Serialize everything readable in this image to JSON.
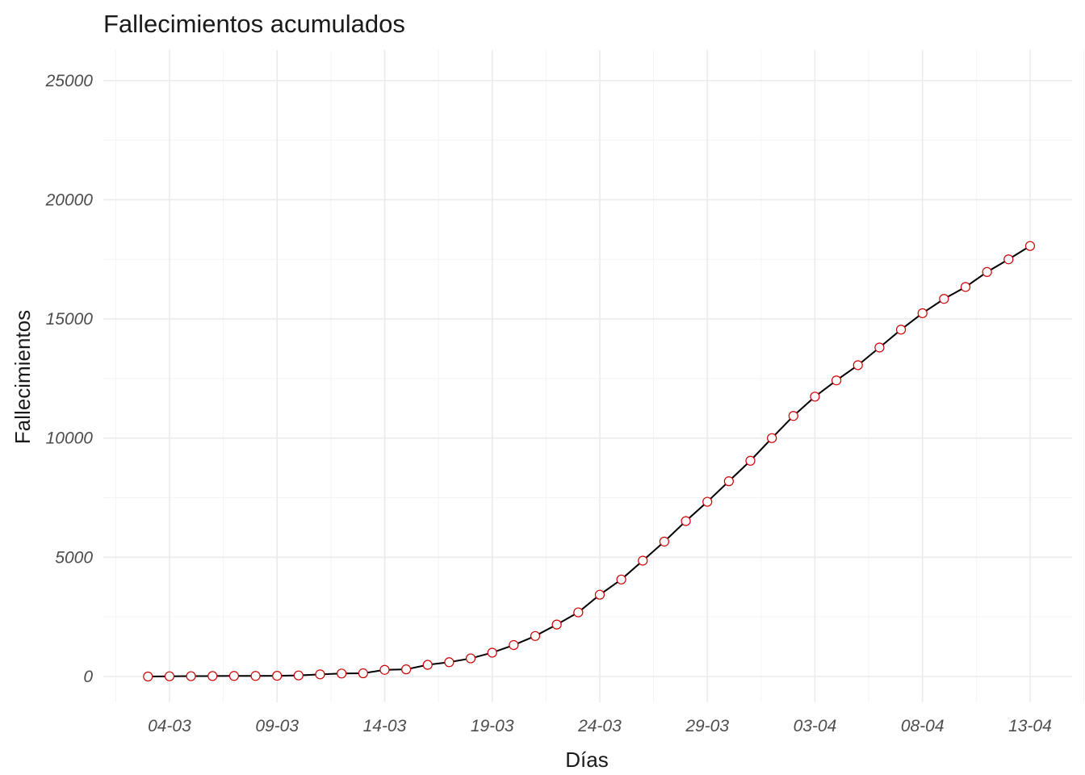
{
  "chart_data": {
    "type": "line",
    "title": "Fallecimientos acumulados",
    "xlabel": "Días",
    "ylabel": "Fallecimientos",
    "ylim": [
      0,
      25000
    ],
    "y_ticks": [
      0,
      5000,
      10000,
      15000,
      20000,
      25000
    ],
    "x_tick_labels": [
      "04-03",
      "09-03",
      "14-03",
      "19-03",
      "24-03",
      "29-03",
      "03-04",
      "08-04",
      "13-04"
    ],
    "x_tick_days": [
      1,
      6,
      11,
      16,
      21,
      26,
      31,
      36,
      41
    ],
    "x": [
      "03-03",
      "04-03",
      "05-03",
      "06-03",
      "07-03",
      "08-03",
      "09-03",
      "10-03",
      "11-03",
      "12-03",
      "13-03",
      "14-03",
      "15-03",
      "16-03",
      "17-03",
      "18-03",
      "19-03",
      "20-03",
      "21-03",
      "22-03",
      "23-03",
      "24-03",
      "25-03",
      "26-03",
      "27-03",
      "28-03",
      "29-03",
      "30-03",
      "31-03",
      "01-04",
      "02-04",
      "03-04",
      "04-04",
      "05-04",
      "06-04",
      "07-04",
      "08-04",
      "09-04",
      "10-04",
      "11-04",
      "12-04",
      "13-04"
    ],
    "series": [
      {
        "values": [
          0,
          10,
          15,
          20,
          25,
          25,
          30,
          45,
          90,
          125,
          135,
          280,
          300,
          490,
          600,
          760,
          1000,
          1320,
          1700,
          2180,
          2690,
          3430,
          4070,
          4860,
          5660,
          6520,
          7330,
          8190,
          9050,
          10000,
          10930,
          11740,
          12420,
          13060,
          13800,
          14550,
          15240,
          15840,
          16340,
          16970,
          17500,
          18060
        ],
        "line_color": "#000000",
        "marker_fill": "#ffffff",
        "marker_stroke": "#cc0000"
      }
    ],
    "grid": true,
    "legend": "none"
  }
}
